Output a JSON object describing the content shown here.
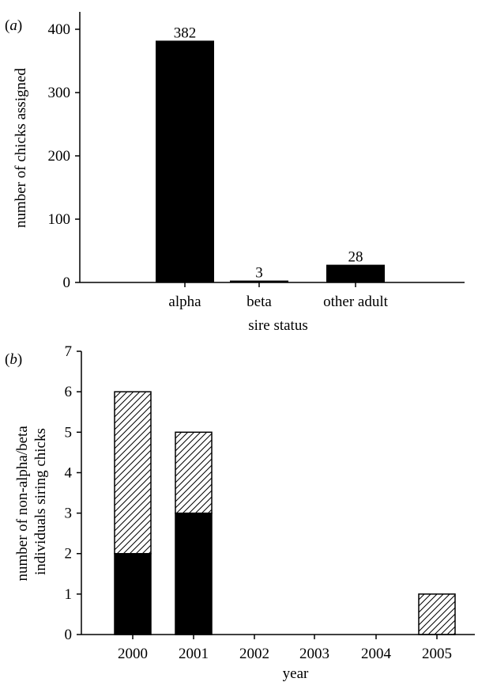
{
  "chart_data": [
    {
      "type": "bar",
      "panel_label": "(a)",
      "panel_letter": "a",
      "categories": [
        "alpha",
        "beta",
        "other adult"
      ],
      "values": [
        382,
        3,
        28
      ],
      "data_labels": [
        "382",
        "3",
        "28"
      ],
      "xlabel": "sire status",
      "ylabel": "number of chicks assigned",
      "ylim": [
        0,
        400
      ],
      "yticks": [
        0,
        100,
        200,
        300,
        400
      ],
      "bar_color": "#000000",
      "grid": false
    },
    {
      "type": "bar",
      "stacked": true,
      "panel_label": "(b)",
      "panel_letter": "b",
      "categories": [
        "2000",
        "2001",
        "2002",
        "2003",
        "2004",
        "2005"
      ],
      "series": [
        {
          "fill": "solid-black",
          "values": [
            2,
            3,
            0,
            0,
            0,
            0
          ]
        },
        {
          "fill": "diagonal-hatch",
          "values": [
            4,
            2,
            0,
            0,
            0,
            1
          ]
        }
      ],
      "xlabel": "year",
      "ylabel_lines": [
        "number of non-alpha/beta",
        "individuals siring chicks"
      ],
      "ylim": [
        0,
        7
      ],
      "yticks": [
        0,
        1,
        2,
        3,
        4,
        5,
        6,
        7
      ],
      "grid": false
    }
  ]
}
